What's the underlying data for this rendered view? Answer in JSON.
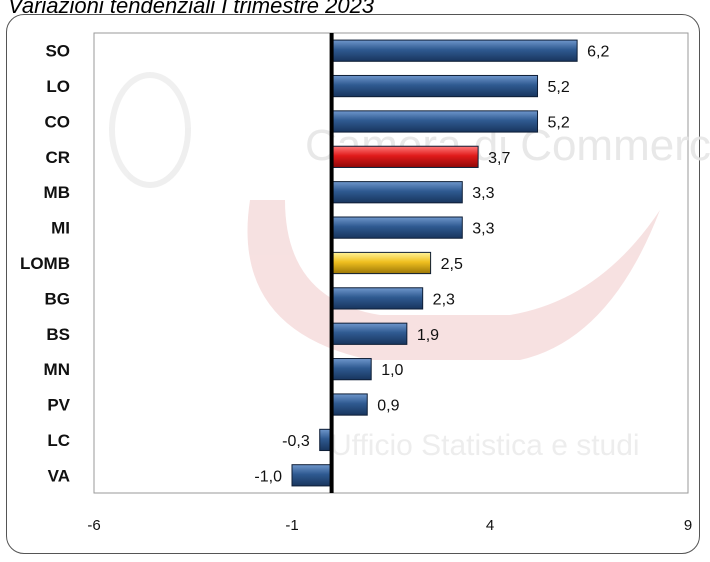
{
  "title": "Variazioni tendenziali I trimestre 2023",
  "colors": {
    "default_bar": "#2f5a91",
    "highlight_red": "#e01a1a",
    "highlight_gold": "#f0c020",
    "axis": "#000000",
    "plot_border": "#9a9a9a",
    "frame_border": "#555555"
  },
  "chart_data": {
    "type": "bar",
    "orientation": "horizontal",
    "categories": [
      "SO",
      "LO",
      "CO",
      "CR",
      "MB",
      "MI",
      "LOMB",
      "BG",
      "BS",
      "MN",
      "PV",
      "LC",
      "VA"
    ],
    "values": [
      6.2,
      5.2,
      5.2,
      3.7,
      3.3,
      3.3,
      2.5,
      2.3,
      1.9,
      1.0,
      0.9,
      -0.3,
      -1.0
    ],
    "value_labels": [
      "6,2",
      "5,2",
      "5,2",
      "3,7",
      "3,3",
      "3,3",
      "2,5",
      "2,3",
      "1,9",
      "1,0",
      "0,9",
      "-0,3",
      "-1,0"
    ],
    "highlight": {
      "CR": "highlight_red",
      "LOMB": "highlight_gold"
    },
    "xlim": [
      -6,
      9
    ],
    "xticks": [
      -6,
      -1,
      4,
      9
    ],
    "xtick_labels": [
      "-6",
      "-1",
      "4",
      "9"
    ],
    "grid": false,
    "legend": "none",
    "watermark": [
      "Camera di Commercio",
      "Ufficio Statistica e studi"
    ]
  }
}
